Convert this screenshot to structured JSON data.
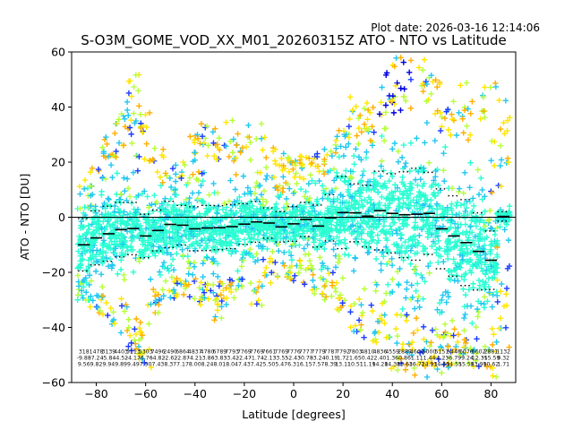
{
  "chart_data": {
    "type": "scatter",
    "title": "S-O3M_GOME_VOD_XX_M01_20260315Z ATO - NTO vs Latitude",
    "plot_date": "Plot date: 2026-03-16 12:14:06",
    "xlabel": "Latitude [degrees]",
    "ylabel": "ATO - NTO [DU]",
    "xlim": [
      -90,
      90
    ],
    "ylim": [
      -60,
      60
    ],
    "xticks": [
      -80,
      -60,
      -40,
      -20,
      0,
      20,
      40,
      60,
      80
    ],
    "yticks": [
      -60,
      -40,
      -20,
      0,
      20,
      40,
      60
    ],
    "grid": false,
    "reference_line": 0,
    "colors": {
      "teal": "#2affd2",
      "cyan": "#22c8f0",
      "blue": "#1c3cff",
      "deep_blue": "#0000e0",
      "yellow": "#ffe600",
      "lime": "#b6ff3a",
      "orange": "#ffb000",
      "mean_line": "#000000"
    },
    "bins": [
      {
        "lat": -85,
        "count": "318",
        "mean": "-9.88",
        "std": "9.56",
        "mean_v": -10.0,
        "std_v": 9.5,
        "p_hi": 14,
        "p_lo": -30,
        "env_hi": 12,
        "env_lo": -38
      },
      {
        "lat": -80,
        "count": "1478",
        "mean": "-7.24",
        "std": "9.82",
        "mean_v": -7.5,
        "std_v": 9.8,
        "p_hi": 20,
        "p_lo": -35,
        "env_hi": 16,
        "env_lo": -38
      },
      {
        "lat": -75,
        "count": "3139",
        "mean": "-5.84",
        "std": "9.94",
        "mean_v": -6.0,
        "std_v": 10.0,
        "p_hi": 30,
        "p_lo": -40,
        "env_hi": 26,
        "env_lo": -40
      },
      {
        "lat": -70,
        "count": "4403",
        "mean": "-4.52",
        "std": "9.89",
        "mean_v": -4.5,
        "std_v": 9.9,
        "p_hi": 38,
        "p_lo": -45,
        "env_hi": 38,
        "env_lo": -44
      },
      {
        "lat": -65,
        "count": "5113",
        "mean": "-4.17",
        "std": "9.49",
        "mean_v": -4.1,
        "std_v": 9.5,
        "p_hi": 52,
        "p_lo": -50,
        "env_hi": 46,
        "env_lo": -50
      },
      {
        "lat": -60,
        "count": "5303",
        "mean": "-6.76",
        "std": "7.90",
        "mean_v": -6.8,
        "std_v": 7.9,
        "p_hi": 40,
        "p_lo": -55,
        "env_hi": 38,
        "env_lo": -55
      },
      {
        "lat": -55,
        "count": "7496",
        "mean": "-4.82",
        "std": "7.43",
        "mean_v": -4.8,
        "std_v": 7.4,
        "p_hi": 26,
        "p_lo": -35,
        "env_hi": 22,
        "env_lo": -33
      },
      {
        "lat": -50,
        "count": "2490",
        "mean": "-2.62",
        "std": "8.37",
        "mean_v": -2.6,
        "std_v": 8.4,
        "p_hi": 20,
        "p_lo": -30,
        "env_hi": 16,
        "env_lo": -28
      },
      {
        "lat": -45,
        "count": "6864",
        "mean": "-2.87",
        "std": "7.17",
        "mean_v": -2.9,
        "std_v": 7.2,
        "p_hi": 20,
        "p_lo": -30,
        "env_hi": 18,
        "env_lo": -28
      },
      {
        "lat": -40,
        "count": "4837",
        "mean": "-4.21",
        "std": "8.00",
        "mean_v": -4.2,
        "std_v": 8.0,
        "p_hi": 30,
        "p_lo": -35,
        "env_hi": 26,
        "env_lo": -32
      },
      {
        "lat": -35,
        "count": "4780",
        "mean": "-3.86",
        "std": "8.24",
        "mean_v": -3.9,
        "std_v": 8.2,
        "p_hi": 34,
        "p_lo": -30,
        "env_hi": 30,
        "env_lo": -30
      },
      {
        "lat": -30,
        "count": "6789",
        "mean": "-3.83",
        "std": "8.01",
        "mean_v": -3.8,
        "std_v": 8.0,
        "p_hi": 34,
        "p_lo": -38,
        "env_hi": 30,
        "env_lo": -32
      },
      {
        "lat": -25,
        "count": "7793",
        "mean": "-3.42",
        "std": "8.04",
        "mean_v": -3.4,
        "std_v": 8.0,
        "p_hi": 36,
        "p_lo": -32,
        "env_hi": 30,
        "env_lo": -30
      },
      {
        "lat": -20,
        "count": "7769",
        "mean": "-2.47",
        "std": "7.43",
        "mean_v": -2.5,
        "std_v": 7.4,
        "p_hi": 34,
        "p_lo": -28,
        "env_hi": 28,
        "env_lo": -26
      },
      {
        "lat": -15,
        "count": "7769",
        "mean": "-1.74",
        "std": "7.42",
        "mean_v": -1.7,
        "std_v": 7.4,
        "p_hi": 35,
        "p_lo": -32,
        "env_hi": 26,
        "env_lo": -28
      },
      {
        "lat": -10,
        "count": "7661",
        "mean": "-2.13",
        "std": "5.50",
        "mean_v": -2.1,
        "std_v": 5.5,
        "p_hi": 30,
        "p_lo": -24,
        "env_hi": 24,
        "env_lo": -22
      },
      {
        "lat": -5,
        "count": "7769",
        "mean": "-3.55",
        "std": "5.47",
        "mean_v": -3.5,
        "std_v": 5.5,
        "p_hi": 24,
        "p_lo": -22,
        "env_hi": 20,
        "env_lo": -20
      },
      {
        "lat": 0,
        "count": "7776",
        "mean": "-2.43",
        "std": "6.31",
        "mean_v": -2.4,
        "std_v": 6.3,
        "p_hi": 22,
        "p_lo": -24,
        "env_hi": 20,
        "env_lo": -22
      },
      {
        "lat": 5,
        "count": "7777",
        "mean": "-0.78",
        "std": "6.15",
        "mean_v": -0.8,
        "std_v": 6.2,
        "p_hi": 24,
        "p_lo": -26,
        "env_hi": 20,
        "env_lo": -24
      },
      {
        "lat": 10,
        "count": "7779",
        "mean": "-3.24",
        "std": "7.57",
        "mean_v": -3.2,
        "std_v": 7.6,
        "p_hi": 24,
        "p_lo": -30,
        "env_hi": 22,
        "env_lo": -28
      },
      {
        "lat": 15,
        "count": "7787",
        "mean": "-0.19",
        "std": "8.39",
        "mean_v": -0.2,
        "std_v": 8.4,
        "p_hi": 30,
        "p_lo": -32,
        "env_hi": 26,
        "env_lo": -30
      },
      {
        "lat": 20,
        "count": "7792",
        "mean": "1.72",
        "std": "13.11",
        "mean_v": 1.7,
        "std_v": 13.1,
        "p_hi": 34,
        "p_lo": -34,
        "env_hi": 32,
        "env_lo": -32
      },
      {
        "lat": 25,
        "count": "7803",
        "mean": "1.65",
        "std": "10.51",
        "mean_v": 1.6,
        "std_v": 10.5,
        "p_hi": 48,
        "p_lo": -42,
        "env_hi": 44,
        "env_lo": -40
      },
      {
        "lat": 30,
        "count": "4810",
        "mean": "0.42",
        "std": "11.19",
        "mean_v": 0.4,
        "std_v": 11.2,
        "p_hi": 42,
        "p_lo": -45,
        "env_hi": 40,
        "env_lo": -42
      },
      {
        "lat": 35,
        "count": "4836",
        "mean": "2.40",
        "std": "14.28",
        "mean_v": 2.4,
        "std_v": 14.3,
        "p_hi": 52,
        "p_lo": -50,
        "env_hi": 48,
        "env_lo": -46
      },
      {
        "lat": 40,
        "count": "4559",
        "mean": "1.36",
        "std": "14.38",
        "mean_v": 1.4,
        "std_v": 14.4,
        "p_hi": 58,
        "p_lo": -58,
        "env_hi": 52,
        "env_lo": -54
      },
      {
        "lat": 45,
        "count": "2889",
        "mean": "0.86",
        "std": "15.63",
        "mean_v": 0.9,
        "std_v": 15.6,
        "p_hi": 60,
        "p_lo": -60,
        "env_hi": 56,
        "env_lo": -58
      },
      {
        "lat": 50,
        "count": "4660",
        "mean": "1.11",
        "std": "16.72",
        "mean_v": 1.1,
        "std_v": 16.7,
        "p_hi": 60,
        "p_lo": -60,
        "env_hi": 56,
        "env_lo": -58
      },
      {
        "lat": 55,
        "count": "5000",
        "mean": "1.44",
        "std": "14.93",
        "mean_v": 1.4,
        "std_v": 14.9,
        "p_hi": 58,
        "p_lo": -60,
        "env_hi": 54,
        "env_lo": -58
      },
      {
        "lat": 60,
        "count": "5151",
        "mean": "-4.23",
        "std": "14.49",
        "mean_v": -4.2,
        "std_v": 14.5,
        "p_hi": 50,
        "p_lo": -58,
        "env_hi": 46,
        "env_lo": -56
      },
      {
        "lat": 65,
        "count": "5446",
        "mean": "-6.79",
        "std": "14.55",
        "mean_v": -6.8,
        "std_v": 14.6,
        "p_hi": 48,
        "p_lo": -55,
        "env_hi": 44,
        "env_lo": -54
      },
      {
        "lat": 70,
        "count": "6076",
        "mean": "-9.24",
        "std": "15.58",
        "mean_v": -9.2,
        "std_v": 15.6,
        "p_hi": 50,
        "p_lo": -58,
        "env_hi": 44,
        "env_lo": -56
      },
      {
        "lat": 75,
        "count": "6602",
        "mean": "-12.35",
        "std": "13.99",
        "mean_v": -12.4,
        "std_v": 14.0,
        "p_hi": 45,
        "p_lo": -55,
        "env_hi": 40,
        "env_lo": -54
      },
      {
        "lat": 80,
        "count": "2881",
        "mean": "-15.59",
        "std": "10.62",
        "mean_v": -15.6,
        "std_v": 10.6,
        "p_hi": 58,
        "p_lo": -58,
        "env_hi": 46,
        "env_lo": -56
      },
      {
        "lat": 85,
        "count": "1132",
        "mean": "0.32",
        "std": "1.71",
        "mean_v": 0.3,
        "std_v": 1.7,
        "p_hi": 44,
        "p_lo": -48,
        "env_hi": 36,
        "env_lo": -42
      }
    ]
  }
}
